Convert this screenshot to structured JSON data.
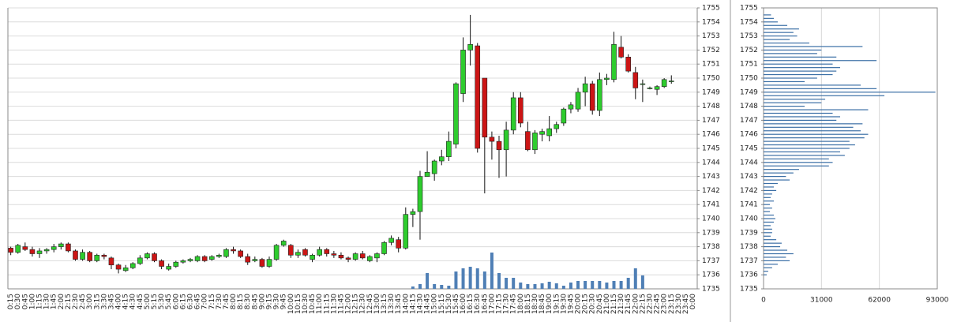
{
  "chart_data": [
    {
      "type": "candlestick",
      "categories": [
        "0:15",
        "0:30",
        "0:45",
        "1:00",
        "1:15",
        "1:30",
        "1:45",
        "2:00",
        "2:15",
        "2:30",
        "2:45",
        "3:00",
        "3:15",
        "3:30",
        "3:45",
        "4:00",
        "4:15",
        "4:30",
        "4:45",
        "5:00",
        "5:15",
        "5:30",
        "5:45",
        "6:00",
        "6:15",
        "6:30",
        "6:45",
        "7:00",
        "7:15",
        "7:30",
        "7:45",
        "8:00",
        "8:15",
        "8:30",
        "8:45",
        "9:00",
        "9:15",
        "9:30",
        "9:45",
        "10:00",
        "10:15",
        "10:30",
        "10:45",
        "11:00",
        "11:15",
        "11:30",
        "11:45",
        "12:00",
        "12:15",
        "12:30",
        "12:45",
        "13:00",
        "13:15",
        "13:30",
        "13:45",
        "14:00",
        "14:15",
        "14:30",
        "14:45",
        "15:00",
        "15:15",
        "15:30",
        "15:45",
        "16:00",
        "16:15",
        "16:30",
        "16:45",
        "17:00",
        "17:15",
        "17:30",
        "17:45",
        "18:00",
        "18:15",
        "18:30",
        "18:45",
        "19:00",
        "19:15",
        "19:30",
        "19:45",
        "20:00",
        "20:15",
        "20:30",
        "20:45",
        "21:00",
        "21:15",
        "21:30",
        "21:45",
        "22:00",
        "22:15",
        "22:30",
        "22:45",
        "23:00",
        "23:15",
        "23:30",
        "23:45",
        "0:00"
      ],
      "ohlc": [
        [
          1737.9,
          1738.0,
          1737.4,
          1737.6
        ],
        [
          1737.6,
          1738.2,
          1737.5,
          1738.1
        ],
        [
          1738.0,
          1738.3,
          1737.7,
          1737.8
        ],
        [
          1737.8,
          1738.0,
          1737.3,
          1737.5
        ],
        [
          1737.5,
          1737.9,
          1737.2,
          1737.7
        ],
        [
          1737.7,
          1737.9,
          1737.5,
          1737.8
        ],
        [
          1737.8,
          1738.2,
          1737.6,
          1738.0
        ],
        [
          1738.0,
          1738.3,
          1737.8,
          1738.2
        ],
        [
          1738.2,
          1738.3,
          1737.6,
          1737.7
        ],
        [
          1737.7,
          1737.8,
          1737.0,
          1737.1
        ],
        [
          1737.1,
          1737.8,
          1737.0,
          1737.6
        ],
        [
          1737.6,
          1737.7,
          1736.9,
          1737.0
        ],
        [
          1737.0,
          1737.5,
          1736.9,
          1737.4
        ],
        [
          1737.4,
          1737.5,
          1737.1,
          1737.3
        ],
        [
          1737.2,
          1737.3,
          1736.4,
          1736.7
        ],
        [
          1736.7,
          1736.8,
          1736.1,
          1736.4
        ],
        [
          1736.3,
          1736.7,
          1736.2,
          1736.5
        ],
        [
          1736.5,
          1736.9,
          1736.4,
          1736.8
        ],
        [
          1736.8,
          1737.4,
          1736.7,
          1737.2
        ],
        [
          1737.2,
          1737.6,
          1737.1,
          1737.5
        ],
        [
          1737.5,
          1737.6,
          1736.9,
          1737.0
        ],
        [
          1737.0,
          1737.1,
          1736.4,
          1736.6
        ],
        [
          1736.4,
          1736.8,
          1736.3,
          1736.6
        ],
        [
          1736.6,
          1737.0,
          1736.5,
          1736.9
        ],
        [
          1736.9,
          1737.1,
          1736.8,
          1737.0
        ],
        [
          1737.0,
          1737.2,
          1736.9,
          1737.1
        ],
        [
          1737.0,
          1737.4,
          1736.9,
          1737.3
        ],
        [
          1737.3,
          1737.4,
          1736.9,
          1737.0
        ],
        [
          1737.1,
          1737.4,
          1737.0,
          1737.3
        ],
        [
          1737.3,
          1737.5,
          1737.2,
          1737.4
        ],
        [
          1737.3,
          1737.9,
          1737.2,
          1737.8
        ],
        [
          1737.8,
          1738.0,
          1737.5,
          1737.7
        ],
        [
          1737.7,
          1737.8,
          1737.2,
          1737.3
        ],
        [
          1737.3,
          1737.5,
          1736.7,
          1736.9
        ],
        [
          1737.0,
          1737.3,
          1736.9,
          1737.1
        ],
        [
          1737.1,
          1737.2,
          1736.5,
          1736.6
        ],
        [
          1736.6,
          1737.3,
          1736.5,
          1737.1
        ],
        [
          1737.1,
          1738.2,
          1737.0,
          1738.1
        ],
        [
          1738.1,
          1738.5,
          1738.0,
          1738.4
        ],
        [
          1738.1,
          1738.2,
          1737.2,
          1737.4
        ],
        [
          1737.4,
          1737.8,
          1737.2,
          1737.6
        ],
        [
          1737.8,
          1737.9,
          1737.3,
          1737.4
        ],
        [
          1737.1,
          1737.5,
          1736.9,
          1737.4
        ],
        [
          1737.4,
          1738.0,
          1737.3,
          1737.8
        ],
        [
          1737.8,
          1737.9,
          1737.3,
          1737.5
        ],
        [
          1737.5,
          1737.7,
          1737.2,
          1737.4
        ],
        [
          1737.4,
          1737.6,
          1737.1,
          1737.2
        ],
        [
          1737.2,
          1737.3,
          1736.9,
          1737.1
        ],
        [
          1737.1,
          1737.6,
          1737.0,
          1737.5
        ],
        [
          1737.5,
          1737.7,
          1737.1,
          1737.2
        ],
        [
          1737.0,
          1737.4,
          1736.9,
          1737.3
        ],
        [
          1737.2,
          1737.6,
          1736.9,
          1737.5
        ],
        [
          1737.5,
          1738.4,
          1737.4,
          1738.3
        ],
        [
          1738.3,
          1738.8,
          1738.1,
          1738.6
        ],
        [
          1738.5,
          1738.7,
          1737.6,
          1737.9
        ],
        [
          1737.9,
          1740.8,
          1737.8,
          1740.3
        ],
        [
          1740.3,
          1740.7,
          1739.4,
          1740.5
        ],
        [
          1740.5,
          1743.4,
          1738.5,
          1743.0
        ],
        [
          1743.0,
          1744.8,
          1743.0,
          1743.3
        ],
        [
          1743.2,
          1744.2,
          1742.7,
          1744.1
        ],
        [
          1744.1,
          1744.9,
          1743.8,
          1744.4
        ],
        [
          1744.4,
          1746.2,
          1744.1,
          1745.5
        ],
        [
          1745.3,
          1749.7,
          1745.0,
          1749.6
        ],
        [
          1748.9,
          1752.9,
          1748.3,
          1752.0
        ],
        [
          1752.0,
          1754.5,
          1750.9,
          1752.4
        ],
        [
          1752.3,
          1752.5,
          1744.7,
          1745.0
        ],
        [
          1750.0,
          1750.0,
          1741.8,
          1745.8
        ],
        [
          1745.8,
          1746.2,
          1744.2,
          1745.5
        ],
        [
          1745.5,
          1745.9,
          1742.9,
          1744.9
        ],
        [
          1744.9,
          1746.9,
          1743.0,
          1746.3
        ],
        [
          1746.3,
          1749.0,
          1746.0,
          1748.6
        ],
        [
          1748.6,
          1749.0,
          1746.5,
          1746.8
        ],
        [
          1746.2,
          1746.9,
          1744.8,
          1744.9
        ],
        [
          1744.9,
          1746.3,
          1744.6,
          1746.1
        ],
        [
          1746.0,
          1746.4,
          1745.5,
          1746.2
        ],
        [
          1745.9,
          1747.3,
          1745.5,
          1746.4
        ],
        [
          1746.4,
          1746.9,
          1746.1,
          1746.7
        ],
        [
          1746.8,
          1747.9,
          1746.6,
          1747.8
        ],
        [
          1747.8,
          1748.3,
          1747.5,
          1748.1
        ],
        [
          1747.8,
          1749.3,
          1747.6,
          1749.0
        ],
        [
          1749.0,
          1750.1,
          1748.0,
          1749.6
        ],
        [
          1749.6,
          1749.8,
          1747.4,
          1747.7
        ],
        [
          1747.7,
          1750.4,
          1747.3,
          1749.9
        ],
        [
          1749.9,
          1750.3,
          1749.5,
          1750.0
        ],
        [
          1749.9,
          1753.3,
          1749.7,
          1752.4
        ],
        [
          1752.2,
          1753.0,
          1751.4,
          1751.5
        ],
        [
          1751.5,
          1751.7,
          1750.4,
          1750.5
        ],
        [
          1750.4,
          1750.8,
          1748.5,
          1749.3
        ],
        [
          1749.6,
          1749.9,
          1748.3,
          1749.6
        ],
        [
          1749.3,
          1749.4,
          1749.2,
          1749.3
        ],
        [
          1749.2,
          1749.5,
          1748.8,
          1749.4
        ],
        [
          1749.4,
          1750.0,
          1749.3,
          1749.9
        ],
        [
          1749.8,
          1750.2,
          1749.6,
          1749.8
        ],
        null,
        null,
        null
      ],
      "volume": [
        null,
        null,
        null,
        null,
        null,
        null,
        null,
        null,
        null,
        null,
        null,
        null,
        null,
        null,
        null,
        null,
        null,
        null,
        null,
        null,
        null,
        null,
        null,
        null,
        null,
        null,
        null,
        null,
        null,
        null,
        null,
        null,
        null,
        null,
        null,
        null,
        null,
        null,
        null,
        null,
        null,
        null,
        null,
        null,
        null,
        null,
        null,
        null,
        null,
        null,
        null,
        null,
        null,
        null,
        null,
        null,
        300,
        600,
        2000,
        600,
        500,
        400,
        2200,
        2600,
        2800,
        2600,
        2200,
        4600,
        2000,
        1400,
        1400,
        800,
        600,
        600,
        700,
        900,
        700,
        400,
        800,
        1000,
        1000,
        1000,
        1000,
        800,
        1000,
        1000,
        1400,
        2600,
        1700,
        null,
        null,
        null,
        null,
        null,
        null,
        null
      ],
      "up_color": "#2ecc2e",
      "down_color": "#cc1515",
      "volume_color": "#4f7fb5",
      "ylim": [
        1735,
        1755
      ],
      "yticks": [
        1735,
        1736,
        1737,
        1738,
        1739,
        1740,
        1741,
        1742,
        1743,
        1744,
        1745,
        1746,
        1747,
        1748,
        1749,
        1750,
        1751,
        1752,
        1753,
        1754,
        1755
      ],
      "grid": true
    },
    {
      "type": "barh",
      "color": "#3b6fa6",
      "levels": [
        1754.5,
        1754.25,
        1754,
        1753.75,
        1753.5,
        1753.25,
        1753,
        1752.75,
        1752.5,
        1752.25,
        1752,
        1751.75,
        1751.5,
        1751.25,
        1751,
        1750.75,
        1750.5,
        1750.25,
        1750,
        1749.75,
        1749.5,
        1749.25,
        1749,
        1748.75,
        1748.5,
        1748.25,
        1748,
        1747.75,
        1747.5,
        1747.25,
        1747,
        1746.75,
        1746.5,
        1746.25,
        1746,
        1745.75,
        1745.5,
        1745.25,
        1745,
        1744.75,
        1744.5,
        1744.25,
        1744,
        1743.75,
        1743.5,
        1743.25,
        1743,
        1742.75,
        1742.5,
        1742.25,
        1742,
        1741.75,
        1741.5,
        1741.25,
        1741,
        1740.75,
        1740.5,
        1740.25,
        1740,
        1739.75,
        1739.5,
        1739.25,
        1739,
        1738.75,
        1738.5,
        1738.25,
        1738,
        1737.75,
        1737.5,
        1737.25,
        1737,
        1736.75,
        1736.5,
        1736.25,
        1736
      ],
      "values": [
        4000,
        5500,
        7600,
        12700,
        19000,
        16000,
        18000,
        14000,
        24500,
        53000,
        31000,
        28700,
        39000,
        60500,
        37000,
        41000,
        39000,
        37000,
        28700,
        22000,
        52000,
        60500,
        92000,
        64700,
        33000,
        31000,
        22000,
        56000,
        37000,
        41000,
        39000,
        53000,
        48000,
        52000,
        56000,
        54000,
        46000,
        49000,
        46000,
        41000,
        43500,
        35000,
        37000,
        35000,
        19000,
        16000,
        12000,
        14000,
        7600,
        5500,
        6800,
        4600,
        3800,
        5500,
        3400,
        4600,
        3400,
        5500,
        6300,
        5500,
        3800,
        4600,
        4600,
        3800,
        6800,
        9700,
        8900,
        12700,
        16000,
        12000,
        14000,
        7600,
        4600,
        2500,
        1700
      ],
      "xlim": [
        0,
        93000
      ],
      "xticks": [
        0,
        31000,
        62000,
        93000
      ],
      "ylim": [
        1735,
        1755
      ],
      "yticks": [
        1735,
        1736,
        1737,
        1738,
        1739,
        1740,
        1741,
        1742,
        1743,
        1744,
        1745,
        1746,
        1747,
        1748,
        1749,
        1750,
        1751,
        1752,
        1753,
        1754,
        1755
      ],
      "grid": true
    }
  ]
}
